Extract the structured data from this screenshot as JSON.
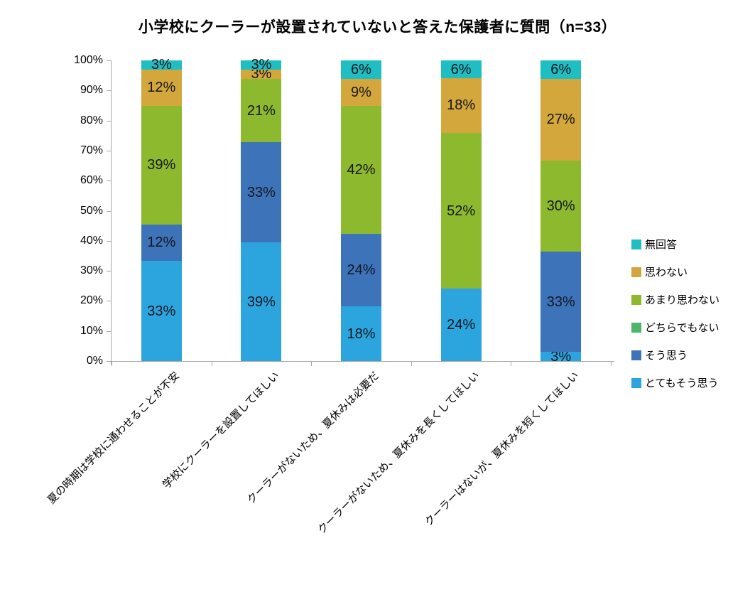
{
  "title": "小学校にクーラーが設置されていないと答えた保護者に質問（n=33）",
  "chart_data": {
    "type": "bar",
    "stacked": true,
    "percent_stacked": true,
    "title": "小学校にクーラーが設置されていないと答えた保護者に質問（n=33）",
    "categories": [
      "夏の時期は学校に通わせることが不安",
      "学校にクーラーを設置してほしい",
      "クーラーがないため、夏休みは必要だ",
      "クーラーがないため、夏休みを長くしてほしい",
      "クーラーはないが、夏休みを短くしてほしい"
    ],
    "series": [
      {
        "name": "とてもそう思う",
        "color": "#2CA5DE",
        "values": [
          33,
          39,
          18,
          24,
          3
        ]
      },
      {
        "name": "そう思う",
        "color": "#3C73B9",
        "values": [
          12,
          33,
          24,
          0,
          33
        ]
      },
      {
        "name": "どちらでもない",
        "color": "#4DB56A",
        "values": [
          0,
          0,
          0,
          0,
          0
        ]
      },
      {
        "name": "あまり思わない",
        "color": "#8DB92E",
        "values": [
          39,
          21,
          42,
          52,
          30
        ]
      },
      {
        "name": "思わない",
        "color": "#D3A73B",
        "values": [
          12,
          3,
          9,
          18,
          27
        ]
      },
      {
        "name": "無回答",
        "color": "#1FBEC3",
        "values": [
          3,
          3,
          6,
          6,
          6
        ]
      }
    ],
    "value_suffix": "%",
    "xlabel": "",
    "ylabel": "",
    "ylim": [
      0,
      100
    ],
    "y_ticks": [
      "0%",
      "10%",
      "20%",
      "30%",
      "40%",
      "50%",
      "60%",
      "70%",
      "80%",
      "90%",
      "100%"
    ],
    "grid": false,
    "legend_position": "right",
    "legend_order_top_to_bottom": [
      "無回答",
      "思わない",
      "あまり思わない",
      "どちらでもない",
      "そう思う",
      "とてもそう思う"
    ],
    "axis_color": "#A6A6A6",
    "label_color": "#16161d"
  }
}
